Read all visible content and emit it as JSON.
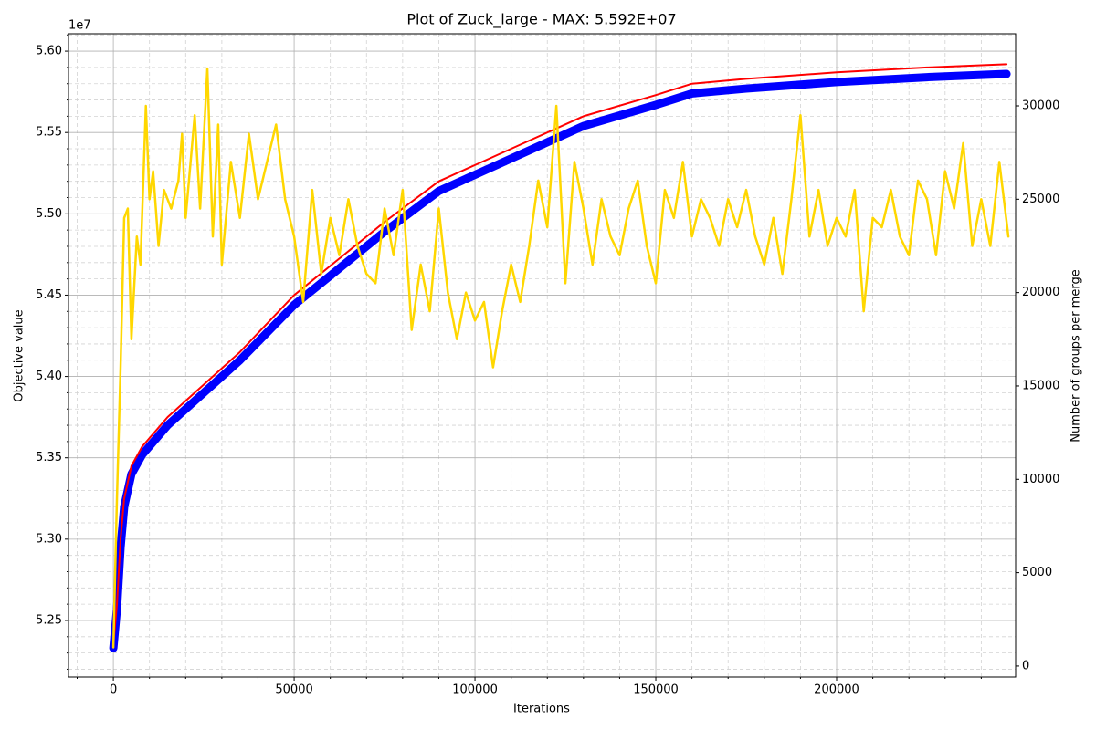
{
  "chart_data": {
    "type": "line",
    "title": "Plot of Zuck_large - MAX: 5.592E+07",
    "xlabel": "Iterations",
    "ylabel": "Objective value",
    "y2label": "Number of groups per merge",
    "y_offset_label": "1e7",
    "xlim": [
      -12400,
      249500
    ],
    "ylim": [
      52152000,
      56107000
    ],
    "y2lim": [
      -590,
      33860
    ],
    "xticks": [
      0,
      50000,
      100000,
      150000,
      200000
    ],
    "yticks": [
      {
        "value": 52500000,
        "label": "5.25"
      },
      {
        "value": 53000000,
        "label": "5.30"
      },
      {
        "value": 53500000,
        "label": "5.35"
      },
      {
        "value": 54000000,
        "label": "5.40"
      },
      {
        "value": 54500000,
        "label": "5.45"
      },
      {
        "value": 55000000,
        "label": "5.50"
      },
      {
        "value": 55500000,
        "label": "5.55"
      },
      {
        "value": 56000000,
        "label": "5.60"
      }
    ],
    "y2ticks": [
      0,
      5000,
      10000,
      15000,
      20000,
      25000,
      30000
    ],
    "grid": true,
    "minor_grid": true,
    "series": [
      {
        "color": "#0000ff",
        "width": 9,
        "x": [
          0,
          1000,
          2000,
          3000,
          5000,
          8000,
          15000,
          25000,
          35000,
          50000,
          60000,
          75000,
          90000,
          100000,
          115000,
          130000,
          150000,
          160000,
          175000,
          200000,
          225000,
          247000
        ],
        "values": [
          52330000,
          52570000,
          52950000,
          53200000,
          53400000,
          53520000,
          53700000,
          53900000,
          54100000,
          54440000,
          54620000,
          54890000,
          55140000,
          55240000,
          55390000,
          55540000,
          55670000,
          55740000,
          55770000,
          55810000,
          55840000,
          55860000
        ]
      },
      {
        "color": "#ff0000",
        "width": 2,
        "x": [
          0,
          1000,
          2000,
          3000,
          5000,
          8000,
          15000,
          25000,
          35000,
          50000,
          60000,
          75000,
          90000,
          100000,
          115000,
          130000,
          150000,
          160000,
          175000,
          200000,
          225000,
          247000
        ],
        "values": [
          52350000,
          52600000,
          53000000,
          53250000,
          53450000,
          53570000,
          53750000,
          53950000,
          54150000,
          54500000,
          54680000,
          54950000,
          55200000,
          55300000,
          55450000,
          55600000,
          55730000,
          55800000,
          55830000,
          55870000,
          55900000,
          55920000
        ]
      },
      {
        "color": "#ffd700",
        "width": 2.5,
        "axis": "y2",
        "x": [
          0,
          1000,
          2000,
          3000,
          4000,
          5000,
          6500,
          7500,
          9000,
          10000,
          11000,
          12500,
          14000,
          16000,
          18000,
          19000,
          20000,
          22500,
          24000,
          26000,
          27500,
          29000,
          30000,
          32500,
          35000,
          37500,
          40000,
          42500,
          45000,
          47500,
          50000,
          52500,
          55000,
          57500,
          60000,
          62500,
          65000,
          67500,
          70000,
          72500,
          75000,
          77500,
          80000,
          82500,
          85000,
          87500,
          90000,
          92500,
          95000,
          97500,
          100000,
          102500,
          105000,
          107500,
          110000,
          112500,
          115000,
          117500,
          120000,
          122500,
          125000,
          127500,
          130000,
          132500,
          135000,
          137500,
          140000,
          142500,
          145000,
          147500,
          150000,
          152500,
          155000,
          157500,
          160000,
          162500,
          165000,
          167500,
          170000,
          172500,
          175000,
          177500,
          180000,
          182500,
          185000,
          187500,
          190000,
          192500,
          195000,
          197500,
          200000,
          202500,
          205000,
          207500,
          210000,
          212500,
          215000,
          217500,
          220000,
          222500,
          225000,
          227500,
          230000,
          232500,
          235000,
          237500,
          240000,
          242500,
          245000,
          247500
        ],
        "values": [
          1000,
          9000,
          16000,
          24000,
          24500,
          17500,
          23000,
          21500,
          30000,
          25000,
          26500,
          22500,
          25500,
          24500,
          26000,
          28500,
          24000,
          29500,
          24500,
          32000,
          23000,
          29000,
          21500,
          27000,
          24000,
          28500,
          25000,
          27000,
          29000,
          25000,
          23000,
          19500,
          25500,
          21000,
          24000,
          22000,
          25000,
          22500,
          21000,
          20500,
          24500,
          22000,
          25500,
          18000,
          21500,
          19000,
          24500,
          20000,
          17500,
          20000,
          18500,
          19500,
          16000,
          19000,
          21500,
          19500,
          22500,
          26000,
          23500,
          30000,
          20500,
          27000,
          24500,
          21500,
          25000,
          23000,
          22000,
          24500,
          26000,
          22500,
          20500,
          25500,
          24000,
          27000,
          23000,
          25000,
          24000,
          22500,
          25000,
          23500,
          25500,
          23000,
          21500,
          24000,
          21000,
          25000,
          29500,
          23000,
          25500,
          22500,
          24000,
          23000,
          25500,
          19000,
          24000,
          23500,
          25500,
          23000,
          22000,
          26000,
          25000,
          22000,
          26500,
          24500,
          28000,
          22500,
          25000,
          22500,
          27000,
          23000
        ]
      }
    ]
  }
}
